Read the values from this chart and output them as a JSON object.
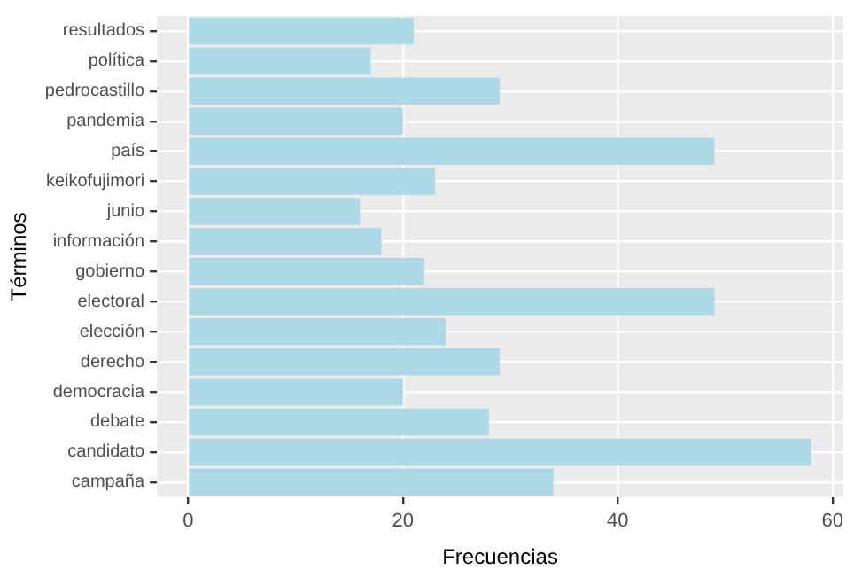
{
  "chart_data": {
    "type": "bar",
    "orientation": "horizontal",
    "xlabel": "Frecuencias",
    "ylabel": "Términos",
    "categories": [
      "resultados",
      "política",
      "pedrocastillo",
      "pandemia",
      "país",
      "keikofujimori",
      "junio",
      "información",
      "gobierno",
      "electoral",
      "elección",
      "derecho",
      "democracia",
      "debate",
      "candidato",
      "campaña"
    ],
    "values": [
      21,
      17,
      29,
      20,
      49,
      23,
      16,
      18,
      22,
      49,
      24,
      29,
      20,
      28,
      58,
      34
    ],
    "color": "#add8e6",
    "xlim": [
      -2.9,
      61
    ],
    "xticks": [
      0,
      20,
      40,
      60
    ],
    "grid": true,
    "legend": false
  }
}
